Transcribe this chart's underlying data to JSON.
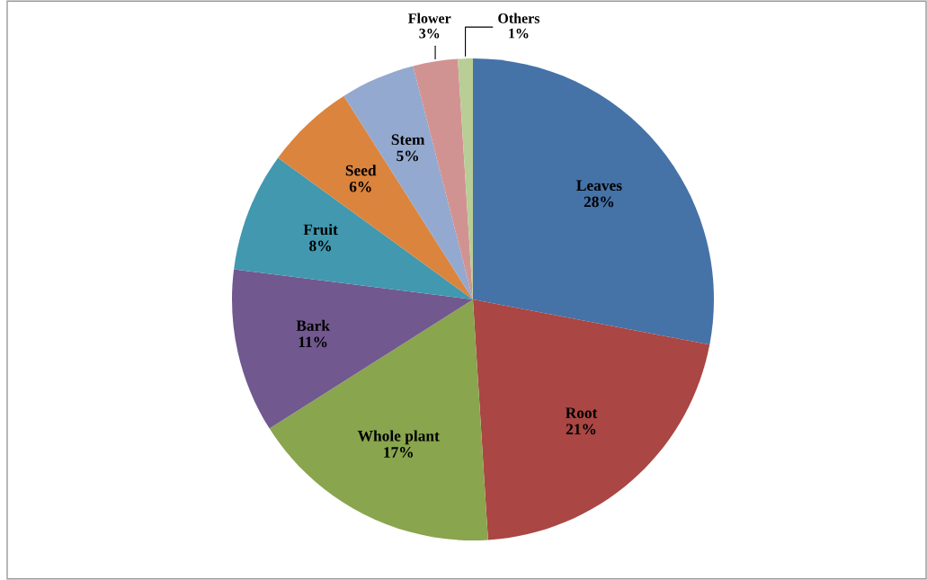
{
  "chart_data": {
    "type": "pie",
    "categories": [
      "Leaves",
      "Root",
      "Whole plant",
      "Bark",
      "Fruit",
      "Seed",
      "Stem",
      "Flower",
      "Others"
    ],
    "values": [
      28,
      21,
      17,
      11,
      8,
      6,
      5,
      3,
      1
    ],
    "colors": [
      "#4572a7",
      "#aa4643",
      "#89a54e",
      "#71588f",
      "#4198af",
      "#db843d",
      "#93a9cf",
      "#d19392",
      "#b9cd96"
    ],
    "value_labels": [
      "28%",
      "21%",
      "17%",
      "11%",
      "8%",
      "6%",
      "5%",
      "3%",
      "1%"
    ],
    "legend": false
  }
}
